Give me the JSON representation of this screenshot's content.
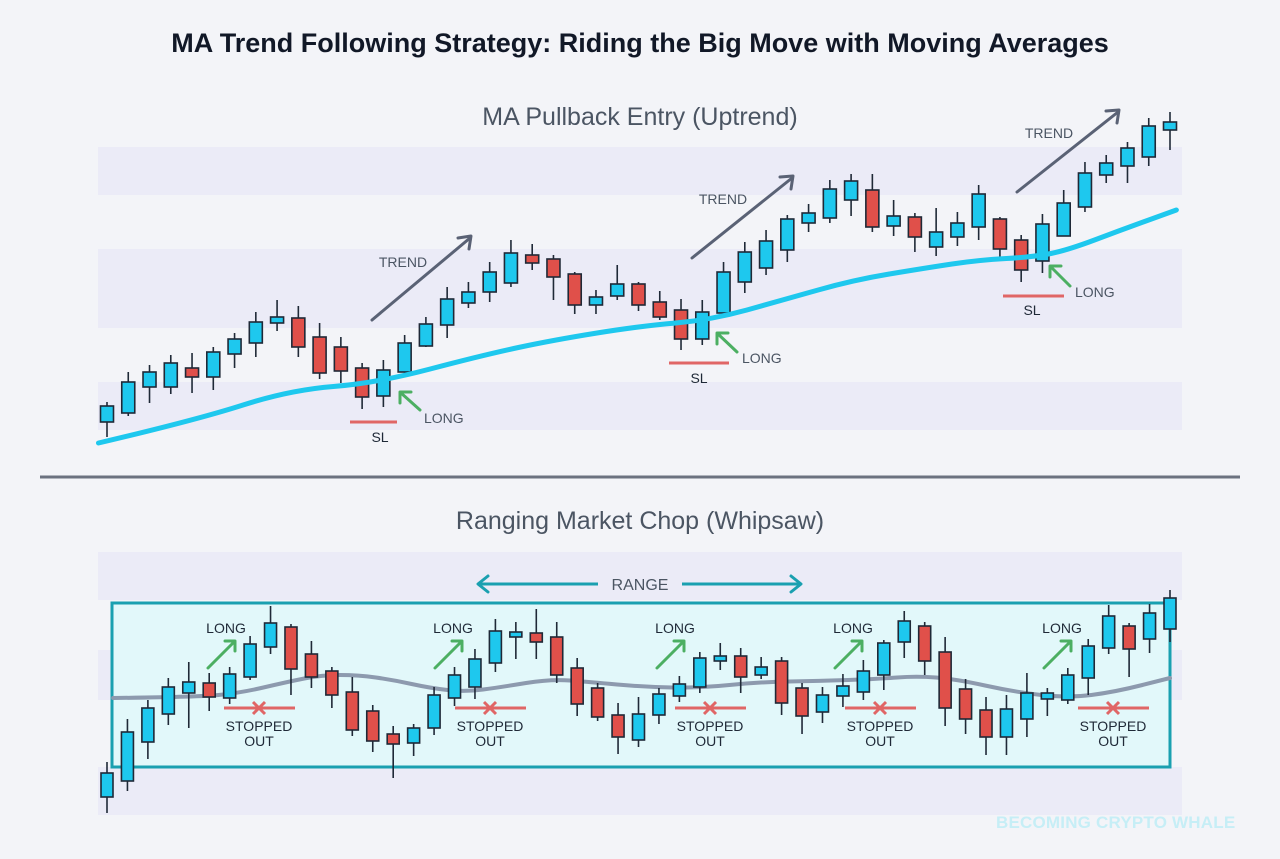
{
  "title": "MA Trend Following Strategy: Riding the Big Move with Moving Averages",
  "watermark": "BECOMING CRYPTO WHALE",
  "colors": {
    "bullish": "#1ec8ee",
    "bearish": "#e0504a",
    "ma_uptrend": "#1ec8ee",
    "ma_range": "#8d9aae",
    "long_arrow": "#4caf62",
    "stop_loss": "#e06666",
    "range_box": "#1aa0b0",
    "trend_arrow": "#5a6275"
  },
  "top_panel": {
    "title": "MA Pullback Entry (Uptrend)",
    "trend_label": "TREND",
    "long_label": "LONG",
    "sl_label": "SL",
    "candles": [
      [
        38,
        58,
        23,
        54
      ],
      [
        47,
        88,
        44,
        78
      ],
      [
        73,
        95,
        57,
        88
      ],
      [
        73,
        105,
        66,
        97
      ],
      [
        92,
        107,
        67,
        83
      ],
      [
        83,
        113,
        70,
        108
      ],
      [
        106,
        127,
        92,
        121
      ],
      [
        117,
        148,
        103,
        138
      ],
      [
        137,
        160,
        129,
        143
      ],
      [
        142,
        154,
        103,
        113
      ],
      [
        123,
        137,
        81,
        87
      ],
      [
        113,
        123,
        77,
        89
      ],
      [
        92,
        97,
        51,
        63
      ],
      [
        64,
        100,
        53,
        90
      ],
      [
        88,
        125,
        83,
        117
      ],
      [
        114,
        143,
        113,
        136
      ],
      [
        135,
        173,
        122,
        161
      ],
      [
        157,
        178,
        152,
        168
      ],
      [
        168,
        198,
        158,
        188
      ],
      [
        177,
        220,
        173,
        207
      ],
      [
        205,
        216,
        190,
        197
      ],
      [
        201,
        205,
        160,
        183
      ],
      [
        186,
        188,
        146,
        155
      ],
      [
        155,
        170,
        146,
        163
      ],
      [
        164,
        195,
        160,
        176
      ],
      [
        176,
        178,
        149,
        155
      ],
      [
        158,
        169,
        140,
        143
      ],
      [
        150,
        161,
        110,
        121
      ],
      [
        121,
        160,
        115,
        148
      ],
      [
        147,
        198,
        142,
        188
      ],
      [
        178,
        218,
        167,
        208
      ],
      [
        192,
        230,
        185,
        219
      ],
      [
        210,
        245,
        198,
        241
      ],
      [
        237,
        256,
        228,
        247
      ],
      [
        242,
        280,
        237,
        271
      ],
      [
        260,
        286,
        244,
        279
      ],
      [
        270,
        286,
        228,
        233
      ],
      [
        234,
        260,
        224,
        244
      ],
      [
        243,
        247,
        208,
        223
      ],
      [
        213,
        252,
        204,
        228
      ],
      [
        223,
        248,
        214,
        237
      ],
      [
        233,
        275,
        220,
        266
      ],
      [
        241,
        243,
        203,
        211
      ],
      [
        220,
        225,
        178,
        190
      ],
      [
        199,
        246,
        187,
        236
      ],
      [
        224,
        270,
        224,
        257
      ],
      [
        253,
        298,
        248,
        287
      ],
      [
        285,
        305,
        277,
        297
      ],
      [
        294,
        318,
        277,
        312
      ],
      [
        303,
        342,
        294,
        334
      ],
      [
        330,
        348,
        310,
        338
      ]
    ],
    "ma": [
      [
        -0.4,
        17
      ],
      [
        4.2,
        40
      ],
      [
        8.6,
        70
      ],
      [
        12.7,
        77
      ],
      [
        17.7,
        105
      ],
      [
        21,
        120
      ],
      [
        25.1,
        134
      ],
      [
        28.4,
        140
      ],
      [
        31.8,
        160
      ],
      [
        35.1,
        180
      ],
      [
        38.5,
        192
      ],
      [
        41,
        200
      ],
      [
        43.6,
        203
      ],
      [
        45.2,
        210
      ],
      [
        47.7,
        230
      ],
      [
        50.3,
        250
      ]
    ]
  },
  "bottom_panel": {
    "title": "Ranging Market Chop (Whipsaw)",
    "range_label": "RANGE",
    "range": {
      "high": 227,
      "low": 63
    },
    "long_label": "LONG",
    "stopped_line1": "STOPPED",
    "stopped_line2": "OUT",
    "candles": [
      [
        33,
        68,
        17,
        57
      ],
      [
        49,
        111,
        39,
        98
      ],
      [
        88,
        130,
        71,
        122
      ],
      [
        116,
        152,
        105,
        143
      ],
      [
        137,
        168,
        102,
        148
      ],
      [
        147,
        157,
        119,
        133
      ],
      [
        132,
        163,
        126,
        156
      ],
      [
        153,
        194,
        150,
        186
      ],
      [
        183,
        224,
        176,
        207
      ],
      [
        203,
        206,
        135,
        161
      ],
      [
        176,
        189,
        142,
        153
      ],
      [
        159,
        163,
        122,
        135
      ],
      [
        138,
        153,
        94,
        100
      ],
      [
        119,
        125,
        78,
        89
      ],
      [
        96,
        104,
        52,
        86
      ],
      [
        87,
        106,
        74,
        102
      ],
      [
        102,
        143,
        95,
        135
      ],
      [
        132,
        163,
        124,
        155
      ],
      [
        143,
        181,
        131,
        171
      ],
      [
        167,
        211,
        158,
        199
      ],
      [
        193,
        208,
        171,
        198
      ],
      [
        197,
        221,
        171,
        188
      ],
      [
        193,
        208,
        147,
        155
      ],
      [
        162,
        172,
        114,
        126
      ],
      [
        142,
        147,
        109,
        113
      ],
      [
        115,
        127,
        76,
        93
      ],
      [
        90,
        133,
        83,
        116
      ],
      [
        115,
        142,
        106,
        136
      ],
      [
        134,
        154,
        128,
        146
      ],
      [
        143,
        178,
        137,
        172
      ],
      [
        169,
        187,
        160,
        174
      ],
      [
        174,
        182,
        137,
        153
      ],
      [
        155,
        173,
        151,
        163
      ],
      [
        169,
        173,
        115,
        127
      ],
      [
        142,
        147,
        96,
        114
      ],
      [
        118,
        143,
        107,
        135
      ],
      [
        134,
        156,
        123,
        144
      ],
      [
        138,
        170,
        130,
        159
      ],
      [
        155,
        190,
        140,
        187
      ],
      [
        188,
        219,
        172,
        209
      ],
      [
        204,
        208,
        155,
        169
      ],
      [
        178,
        193,
        104,
        122
      ],
      [
        141,
        151,
        96,
        111
      ],
      [
        120,
        133,
        75,
        93
      ],
      [
        93,
        135,
        75,
        121
      ],
      [
        111,
        157,
        93,
        137
      ],
      [
        131,
        142,
        114,
        137
      ],
      [
        130,
        162,
        126,
        155
      ],
      [
        152,
        191,
        135,
        184
      ],
      [
        182,
        225,
        176,
        214
      ],
      [
        204,
        207,
        153,
        181
      ],
      [
        191,
        226,
        177,
        217
      ],
      [
        201,
        240,
        188,
        232
      ]
    ],
    "ma": [
      [
        0.3,
        132
      ],
      [
        4.4,
        133
      ],
      [
        6.5,
        137
      ],
      [
        8.8,
        148
      ],
      [
        10.5,
        155
      ],
      [
        12.3,
        155
      ],
      [
        14,
        150
      ],
      [
        15.8,
        142
      ],
      [
        17.5,
        138
      ],
      [
        19.3,
        143
      ],
      [
        21.7,
        151
      ],
      [
        23.6,
        148
      ],
      [
        26.3,
        143
      ],
      [
        29,
        142
      ],
      [
        31.9,
        148
      ],
      [
        34.8,
        149
      ],
      [
        37.7,
        151
      ],
      [
        39.6,
        154
      ],
      [
        41.5,
        151
      ],
      [
        44.4,
        138
      ],
      [
        47,
        132
      ],
      [
        49.3,
        138
      ],
      [
        52,
        152
      ]
    ]
  }
}
